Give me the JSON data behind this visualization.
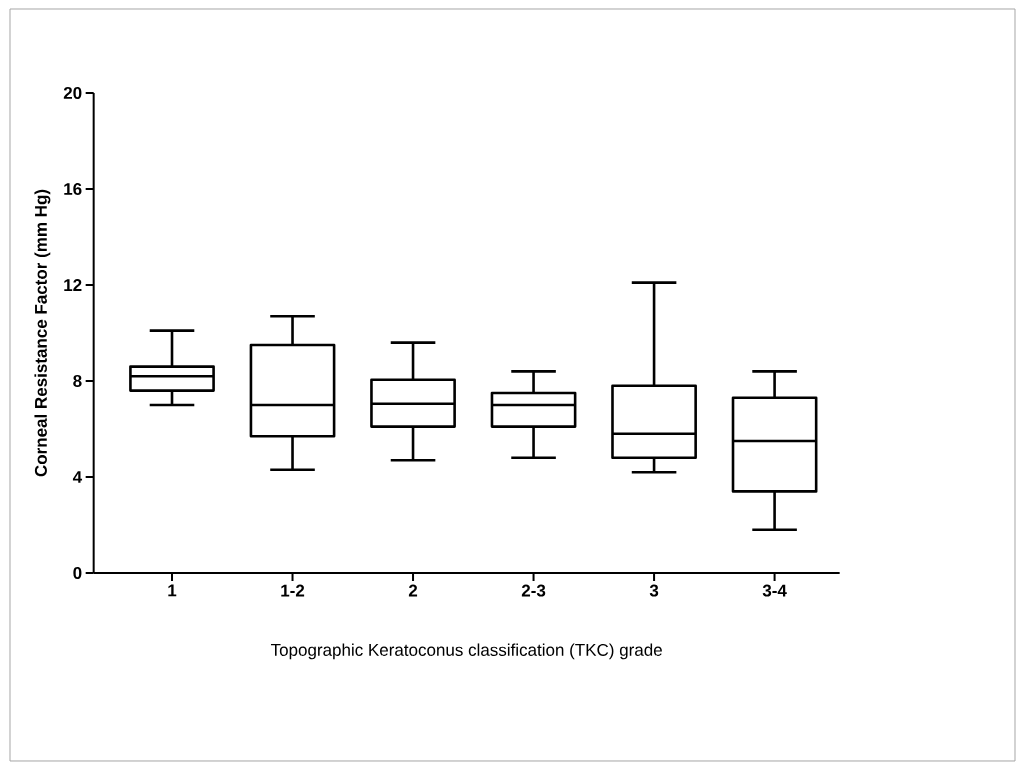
{
  "chart_data": {
    "type": "box",
    "xlabel": "Topographic Keratoconus classification (TKC) grade",
    "ylabel": "Corneal Resistance Factor (mm Hg)",
    "categories": [
      "1",
      "1-2",
      "2",
      "2-3",
      "3",
      "3-4"
    ],
    "boxes": [
      {
        "low": 7.0,
        "q1": 7.6,
        "median": 8.2,
        "q3": 8.6,
        "high": 10.1
      },
      {
        "low": 4.3,
        "q1": 5.7,
        "median": 7.0,
        "q3": 9.5,
        "high": 10.7
      },
      {
        "low": 4.7,
        "q1": 6.1,
        "median": 7.05,
        "q3": 8.05,
        "high": 9.6
      },
      {
        "low": 4.8,
        "q1": 6.1,
        "median": 7.0,
        "q3": 7.5,
        "high": 8.4
      },
      {
        "low": 4.2,
        "q1": 4.8,
        "median": 5.8,
        "q3": 7.8,
        "high": 12.1
      },
      {
        "low": 1.8,
        "q1": 3.4,
        "median": 5.5,
        "q3": 7.3,
        "high": 8.4
      }
    ],
    "ylim": [
      0,
      20
    ],
    "yticks": [
      0,
      4,
      8,
      12,
      16,
      20
    ],
    "grid": false
  }
}
